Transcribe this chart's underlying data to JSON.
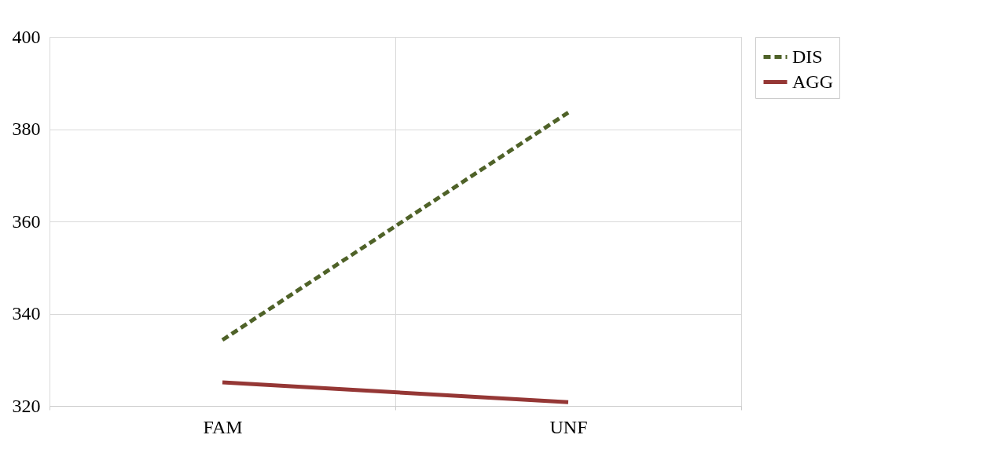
{
  "chart_data": {
    "type": "line",
    "categories": [
      "FAM",
      "UNF"
    ],
    "series": [
      {
        "name": "DIS",
        "color": "#4f6228",
        "line_style": "dashed",
        "values": [
          334.3,
          383.6
        ]
      },
      {
        "name": "AGG",
        "color": "#953735",
        "line_style": "solid",
        "values": [
          325.1,
          320.8
        ]
      }
    ],
    "ylim": [
      320,
      400
    ],
    "yticks": [
      320,
      340,
      360,
      380,
      400
    ],
    "grid": true,
    "legend": "right"
  }
}
